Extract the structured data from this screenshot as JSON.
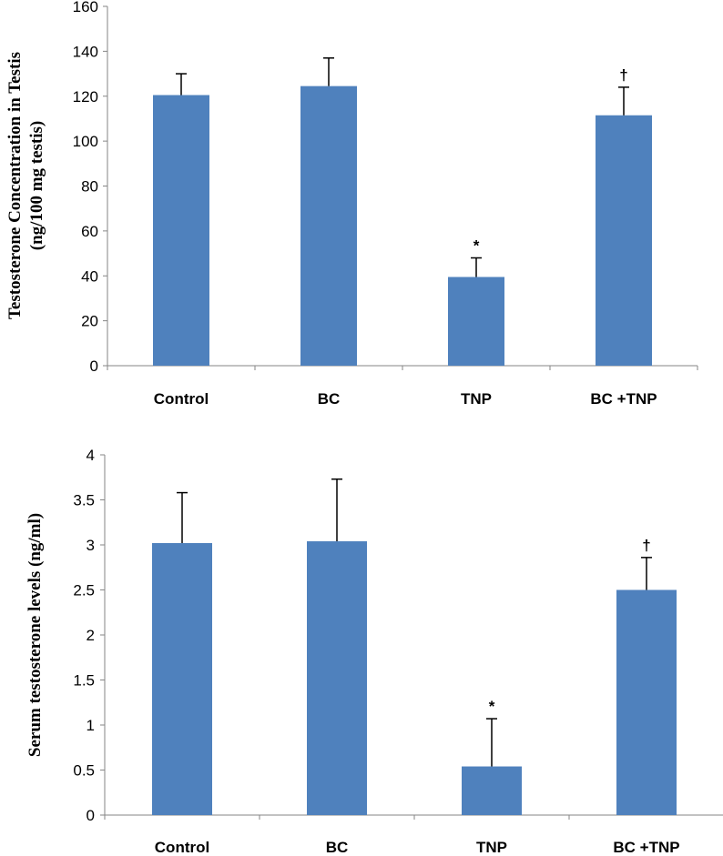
{
  "chart_data": [
    {
      "type": "bar",
      "ylabel_line1": "Testosterone Concentration in Testis",
      "ylabel_line2": "(ng/100 mg testis)",
      "xlabel": "",
      "categories": [
        "Control",
        "BC",
        "TNP",
        "BC +TNP"
      ],
      "values": [
        120.5,
        124.5,
        39.5,
        111.5
      ],
      "error": [
        9.5,
        12.5,
        8.5,
        12.5
      ],
      "markers": [
        "",
        "",
        "*",
        "†"
      ],
      "ylim": [
        0,
        160
      ],
      "yticks": [
        0,
        20,
        40,
        60,
        80,
        100,
        120,
        140,
        160
      ],
      "ytick_labels": [
        "0",
        "20",
        "40",
        "60",
        "80",
        "100",
        "120",
        "140",
        "160"
      ],
      "grid": false,
      "color": "#4f81bd"
    },
    {
      "type": "bar",
      "ylabel": "Serum testosterone levels (ng/ml)",
      "xlabel": "",
      "categories": [
        "Control",
        "BC",
        "TNP",
        "BC +TNP"
      ],
      "values": [
        3.02,
        3.04,
        0.54,
        2.5
      ],
      "error": [
        0.56,
        0.69,
        0.53,
        0.36
      ],
      "markers": [
        "",
        "",
        "*",
        "†"
      ],
      "ylim": [
        0,
        4
      ],
      "yticks": [
        0,
        0.5,
        1,
        1.5,
        2,
        2.5,
        3,
        3.5,
        4
      ],
      "ytick_labels": [
        "0",
        "0.5",
        "1",
        "1.5",
        "2",
        "2.5",
        "3",
        "3.5",
        "4"
      ],
      "grid": false,
      "color": "#4f81bd"
    }
  ]
}
